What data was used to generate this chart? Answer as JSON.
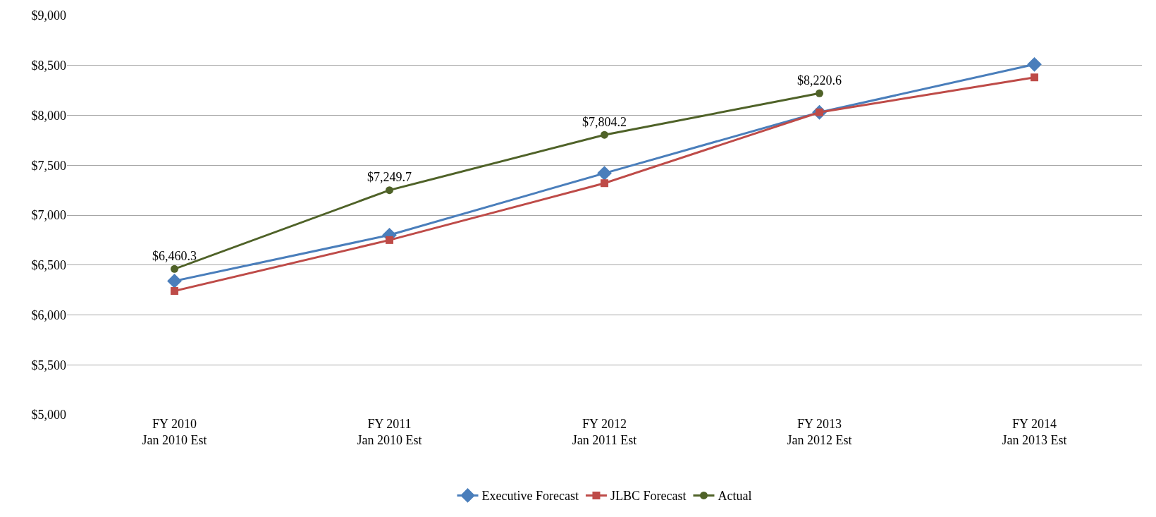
{
  "chart_data": {
    "type": "line",
    "categories": [
      "FY 2010\nJan 2010 Est",
      "FY 2011\nJan 2010 Est",
      "FY 2012\nJan 2011 Est",
      "FY 2013\nJan 2012 Est",
      "FY 2014\nJan 2013 Est"
    ],
    "series": [
      {
        "name": "Executive Forecast",
        "color": "#4a7ebb",
        "marker": "diamond",
        "values": [
          6340,
          6800,
          7420,
          8030,
          8510
        ]
      },
      {
        "name": "JLBC Forecast",
        "color": "#be4b48",
        "marker": "square",
        "values": [
          6240,
          6750,
          7320,
          8030,
          8380
        ]
      },
      {
        "name": "Actual",
        "color": "#4f6228",
        "marker": "circle",
        "values": [
          6460.3,
          7249.7,
          7804.2,
          8220.6,
          null
        ],
        "value_labels": [
          "$6,460.3",
          "$7,249.7",
          "$7,804.2",
          "$8,220.6",
          null
        ]
      }
    ],
    "ylim": [
      5000,
      9000
    ],
    "yticks": [
      {
        "value": 5000,
        "label": "$5,000"
      },
      {
        "value": 5500,
        "label": "$5,500"
      },
      {
        "value": 6000,
        "label": "$6,000"
      },
      {
        "value": 6500,
        "label": "$6,500"
      },
      {
        "value": 7000,
        "label": "$7,000"
      },
      {
        "value": 7500,
        "label": "$7,500"
      },
      {
        "value": 8000,
        "label": "$8,000"
      },
      {
        "value": 8500,
        "label": "$8,500"
      },
      {
        "value": 9000,
        "label": "$9,000"
      }
    ],
    "grid": "y",
    "legend": "bottom",
    "line_style": "solid"
  }
}
